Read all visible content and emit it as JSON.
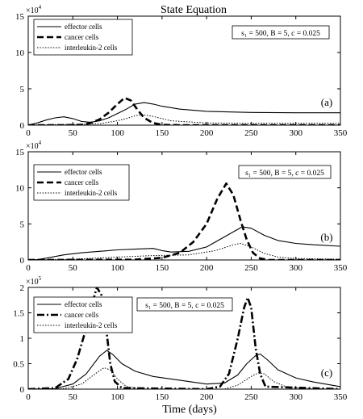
{
  "figure": {
    "title": "State Equation",
    "xlabel": "Time (days)"
  },
  "chart_data": [
    {
      "type": "line",
      "panel_label": "(a)",
      "multiplier_text": "×10",
      "multiplier_exp": "4",
      "param_text": "s₁ = 500, B = 5, c = 0.025",
      "xlim": [
        0,
        350
      ],
      "ylim": [
        0,
        15
      ],
      "xticks": [
        0,
        50,
        100,
        150,
        200,
        250,
        300,
        350
      ],
      "yticks": [
        0,
        5,
        10,
        15
      ],
      "grid": false,
      "legend_position": "top-left",
      "series": [
        {
          "name": "effector cells",
          "style": "solid",
          "points": [
            [
              0,
              0
            ],
            [
              10,
              0.3
            ],
            [
              20,
              0.7
            ],
            [
              30,
              1.0
            ],
            [
              40,
              1.15
            ],
            [
              50,
              0.9
            ],
            [
              60,
              0.5
            ],
            [
              70,
              0.4
            ],
            [
              80,
              0.6
            ],
            [
              90,
              1.0
            ],
            [
              100,
              1.6
            ],
            [
              110,
              2.2
            ],
            [
              120,
              2.9
            ],
            [
              130,
              3.1
            ],
            [
              140,
              2.9
            ],
            [
              150,
              2.6
            ],
            [
              170,
              2.2
            ],
            [
              200,
              1.9
            ],
            [
              250,
              1.75
            ],
            [
              300,
              1.7
            ],
            [
              350,
              1.7
            ]
          ]
        },
        {
          "name": "cancer cells",
          "style": "dashed",
          "points": [
            [
              0,
              0
            ],
            [
              40,
              0
            ],
            [
              60,
              0.05
            ],
            [
              70,
              0.3
            ],
            [
              80,
              0.8
            ],
            [
              90,
              1.7
            ],
            [
              100,
              2.9
            ],
            [
              108,
              3.75
            ],
            [
              115,
              3.4
            ],
            [
              122,
              2.2
            ],
            [
              130,
              1.0
            ],
            [
              140,
              0.3
            ],
            [
              150,
              0.05
            ],
            [
              170,
              0
            ],
            [
              350,
              0
            ]
          ]
        },
        {
          "name": "interleukin-2 cells",
          "style": "dotted",
          "points": [
            [
              0,
              0
            ],
            [
              40,
              0.1
            ],
            [
              60,
              0.1
            ],
            [
              80,
              0.2
            ],
            [
              100,
              0.6
            ],
            [
              110,
              0.9
            ],
            [
              120,
              1.3
            ],
            [
              128,
              1.45
            ],
            [
              140,
              1.2
            ],
            [
              160,
              0.6
            ],
            [
              200,
              0.3
            ],
            [
              250,
              0.25
            ],
            [
              350,
              0.25
            ]
          ]
        }
      ]
    },
    {
      "type": "line",
      "panel_label": "(b)",
      "multiplier_text": "×10",
      "multiplier_exp": "4",
      "param_text": "s₁ = 500, B = 5, c = 0.025",
      "xlim": [
        0,
        350
      ],
      "ylim": [
        0,
        15
      ],
      "xticks": [
        0,
        50,
        100,
        150,
        200,
        250,
        300,
        350
      ],
      "yticks": [
        0,
        5,
        10,
        15
      ],
      "grid": false,
      "legend_position": "top-left",
      "series": [
        {
          "name": "effector cells",
          "style": "solid",
          "points": [
            [
              0,
              0
            ],
            [
              10,
              0.05
            ],
            [
              20,
              0.25
            ],
            [
              40,
              0.7
            ],
            [
              60,
              1.0
            ],
            [
              80,
              1.2
            ],
            [
              100,
              1.4
            ],
            [
              120,
              1.5
            ],
            [
              140,
              1.6
            ],
            [
              150,
              1.3
            ],
            [
              160,
              1.1
            ],
            [
              180,
              1.2
            ],
            [
              200,
              1.8
            ],
            [
              220,
              3.2
            ],
            [
              240,
              4.6
            ],
            [
              250,
              4.4
            ],
            [
              265,
              3.4
            ],
            [
              280,
              2.7
            ],
            [
              300,
              2.3
            ],
            [
              320,
              2.1
            ],
            [
              350,
              1.9
            ]
          ]
        },
        {
          "name": "cancer cells",
          "style": "dashed",
          "points": [
            [
              0,
              0
            ],
            [
              120,
              0.05
            ],
            [
              150,
              0.3
            ],
            [
              170,
              1.0
            ],
            [
              185,
              2.5
            ],
            [
              200,
              5.0
            ],
            [
              212,
              8.5
            ],
            [
              222,
              10.6
            ],
            [
              230,
              9.0
            ],
            [
              238,
              5.5
            ],
            [
              245,
              2.8
            ],
            [
              252,
              1.0
            ],
            [
              260,
              0.2
            ],
            [
              270,
              0
            ],
            [
              350,
              0
            ]
          ]
        },
        {
          "name": "interleukin-2 cells",
          "style": "dotted",
          "points": [
            [
              0,
              0
            ],
            [
              50,
              0.1
            ],
            [
              100,
              0.4
            ],
            [
              140,
              0.6
            ],
            [
              180,
              0.7
            ],
            [
              210,
              1.3
            ],
            [
              230,
              2.1
            ],
            [
              238,
              2.3
            ],
            [
              250,
              1.8
            ],
            [
              265,
              0.9
            ],
            [
              280,
              0.4
            ],
            [
              300,
              0.2
            ],
            [
              350,
              0.1
            ]
          ]
        }
      ]
    },
    {
      "type": "line",
      "panel_label": "(c)",
      "multiplier_text": "×10",
      "multiplier_exp": "5",
      "param_text": "s₁ = 500, B = 5, c = 0.025",
      "xlim": [
        0,
        350
      ],
      "ylim": [
        0,
        2
      ],
      "xticks": [
        0,
        50,
        100,
        150,
        200,
        250,
        300,
        350
      ],
      "yticks": [
        0,
        0.5,
        1,
        1.5,
        2
      ],
      "grid": false,
      "legend_position": "top-left",
      "series": [
        {
          "name": "effector cells",
          "style": "solid",
          "points": [
            [
              0,
              0
            ],
            [
              30,
              0.01
            ],
            [
              50,
              0.1
            ],
            [
              65,
              0.3
            ],
            [
              80,
              0.65
            ],
            [
              88,
              0.76
            ],
            [
              95,
              0.68
            ],
            [
              105,
              0.5
            ],
            [
              120,
              0.35
            ],
            [
              140,
              0.25
            ],
            [
              160,
              0.2
            ],
            [
              180,
              0.15
            ],
            [
              200,
              0.1
            ],
            [
              220,
              0.12
            ],
            [
              235,
              0.28
            ],
            [
              245,
              0.5
            ],
            [
              255,
              0.66
            ],
            [
              260,
              0.69
            ],
            [
              268,
              0.58
            ],
            [
              280,
              0.38
            ],
            [
              300,
              0.22
            ],
            [
              320,
              0.14
            ],
            [
              350,
              0.05
            ]
          ]
        },
        {
          "name": "cancer cells",
          "style": "dashdot",
          "points": [
            [
              0,
              0
            ],
            [
              30,
              0.02
            ],
            [
              45,
              0.2
            ],
            [
              55,
              0.6
            ],
            [
              65,
              1.2
            ],
            [
              72,
              1.7
            ],
            [
              77,
              2.0
            ],
            [
              82,
              1.85
            ],
            [
              88,
              1.1
            ],
            [
              92,
              0.5
            ],
            [
              97,
              0.15
            ],
            [
              105,
              0.02
            ],
            [
              200,
              0
            ],
            [
              215,
              0.05
            ],
            [
              225,
              0.3
            ],
            [
              235,
              1.0
            ],
            [
              242,
              1.6
            ],
            [
              246,
              1.8
            ],
            [
              250,
              1.6
            ],
            [
              255,
              0.8
            ],
            [
              260,
              0.3
            ],
            [
              266,
              0.05
            ],
            [
              350,
              0
            ]
          ]
        },
        {
          "name": "interleukin-2 cells",
          "style": "dotted",
          "points": [
            [
              0,
              0
            ],
            [
              40,
              0.01
            ],
            [
              60,
              0.1
            ],
            [
              75,
              0.3
            ],
            [
              85,
              0.42
            ],
            [
              92,
              0.38
            ],
            [
              100,
              0.2
            ],
            [
              110,
              0.05
            ],
            [
              130,
              0
            ],
            [
              220,
              0
            ],
            [
              235,
              0.08
            ],
            [
              250,
              0.25
            ],
            [
              258,
              0.32
            ],
            [
              265,
              0.3
            ],
            [
              275,
              0.15
            ],
            [
              290,
              0.04
            ],
            [
              310,
              0.01
            ],
            [
              350,
              0
            ]
          ]
        }
      ]
    }
  ]
}
